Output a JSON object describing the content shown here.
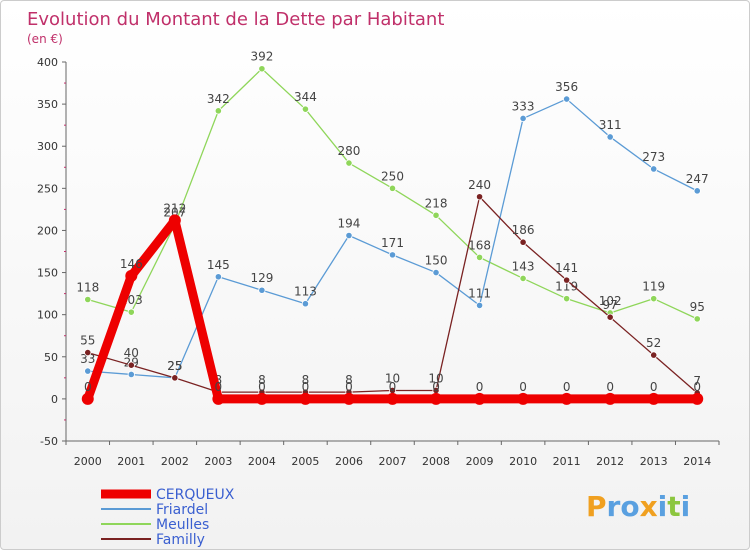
{
  "chart_data": {
    "type": "line",
    "title": "Evolution du Montant de la Dette par Habitant",
    "subtitle": "(en €)",
    "x": [
      "2000",
      "2001",
      "2002",
      "2003",
      "2004",
      "2005",
      "2006",
      "2007",
      "2008",
      "2009",
      "2010",
      "2011",
      "2012",
      "2013",
      "2014"
    ],
    "ylim": [
      -50,
      400
    ],
    "yticks": [
      -50,
      0,
      50,
      100,
      150,
      200,
      250,
      300,
      350,
      400
    ],
    "grid": false,
    "legend_position": "bottom-left",
    "series": [
      {
        "name": "CERQUEUX",
        "color": "#ee0000",
        "values": [
          0,
          146,
          212,
          0,
          0,
          0,
          0,
          0,
          0,
          0,
          0,
          0,
          0,
          0,
          0
        ]
      },
      {
        "name": "Friardel",
        "color": "#5b9bd5",
        "values": [
          33,
          29,
          25,
          145,
          129,
          113,
          194,
          171,
          150,
          111,
          333,
          356,
          311,
          273,
          247
        ]
      },
      {
        "name": "Meulles",
        "color": "#8fd65a",
        "values": [
          118,
          103,
          207,
          342,
          392,
          344,
          280,
          250,
          218,
          168,
          143,
          119,
          102,
          119,
          95
        ]
      },
      {
        "name": "Familly",
        "color": "#7a2222",
        "values": [
          55,
          40,
          25,
          8,
          8,
          8,
          8,
          10,
          10,
          240,
          186,
          141,
          97,
          52,
          7
        ]
      }
    ],
    "point_labels": [
      [
        "0",
        "146",
        "212",
        "0",
        "0",
        "0",
        "0",
        "0",
        "0",
        "0",
        "0",
        "0",
        "0",
        "0",
        "0"
      ],
      [
        "33",
        "29",
        "25",
        "145",
        "129",
        "113",
        "194",
        "171",
        "150",
        "111",
        "333",
        "356",
        "311",
        "273",
        "247"
      ],
      [
        "118",
        "103",
        "207",
        "342",
        "392",
        "344",
        "280",
        "250",
        "218",
        "168",
        "143",
        "119",
        "102",
        "119",
        "95"
      ],
      [
        "55",
        "40",
        "25",
        "8",
        "8",
        "8",
        "8",
        "10",
        "10",
        "240",
        "186",
        "141",
        "97",
        "52",
        "7"
      ]
    ]
  },
  "brand": {
    "logo": "Proxiti"
  }
}
